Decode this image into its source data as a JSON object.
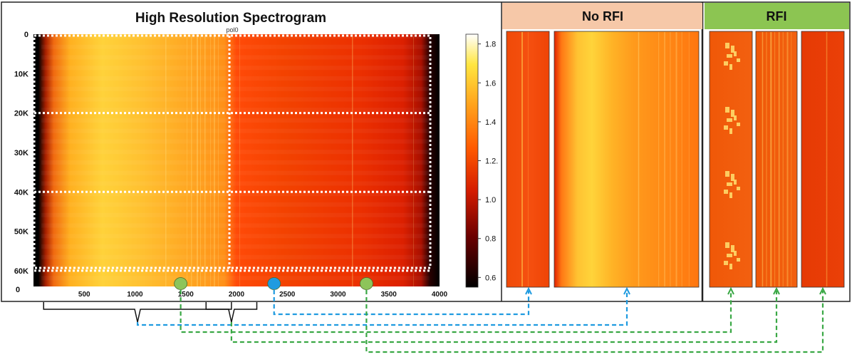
{
  "chart_data": {
    "type": "heatmap",
    "title": "High Resolution Spectrogram",
    "subtitle": "pol0",
    "x_ticks": [
      500,
      1000,
      1500,
      2000,
      2500,
      3000,
      3500,
      4000
    ],
    "x_ticks_labels": [
      "500",
      "1000",
      "1500",
      "2000",
      "2500",
      "3000",
      "3500",
      "4000"
    ],
    "xlim": [
      0,
      4000
    ],
    "y_ticks": [
      0,
      10000,
      20000,
      30000,
      40000,
      50000,
      60000
    ],
    "y_tick_labels": [
      "0",
      "10K",
      "20K",
      "30K",
      "40K",
      "50K",
      "60K"
    ],
    "y_bottom_label": "0",
    "ylim": [
      0,
      64000
    ],
    "grid_x": [
      1930
    ],
    "grid_y": [
      20000,
      40000,
      60000
    ],
    "colorbar": {
      "ticks": [
        1.8,
        1.6,
        1.4,
        1.2,
        1.0,
        0.8,
        0.6
      ],
      "tick_labels": [
        "1.8",
        "1.6",
        "1.4",
        "1.2.",
        "1.0",
        "0.8",
        "0.6"
      ],
      "range": [
        0.55,
        1.85
      ],
      "colors": [
        "#000000",
        "#6b0000",
        "#d41c00",
        "#ff5a00",
        "#ffa21c",
        "#ffe640",
        "#ffffff"
      ]
    },
    "markers": [
      {
        "x": 1450,
        "color": "#8dc45a",
        "kind": "rfi"
      },
      {
        "x": 2370,
        "color": "#1f9be0",
        "kind": "no-rfi"
      },
      {
        "x": 3280,
        "color": "#8dc45a",
        "kind": "rfi"
      }
    ],
    "bracket_ranges": [
      [
        100,
        1950
      ],
      [
        1700,
        2200
      ]
    ]
  },
  "panels": {
    "no_rfi": {
      "title": "No RFI",
      "header_color": "#f6c8a8"
    },
    "rfi": {
      "title": "RFI",
      "header_color": "#8cc552"
    }
  },
  "colors": {
    "no_rfi_arrow": "#1f9be0",
    "rfi_arrow": "#3aa845"
  }
}
